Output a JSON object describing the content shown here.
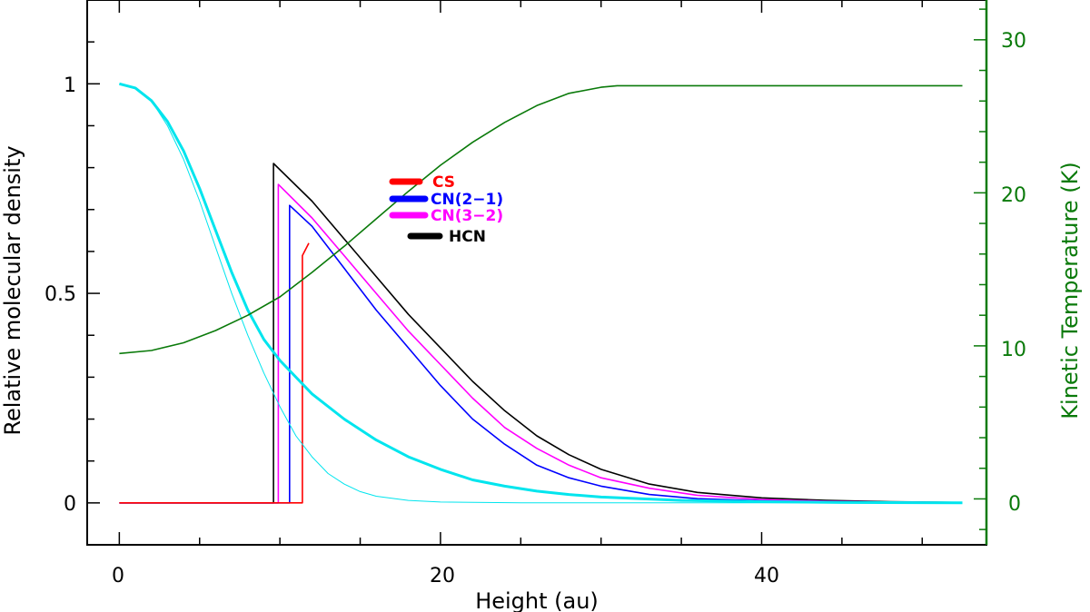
{
  "chart_data": {
    "type": "line",
    "title": "",
    "xlabel": "Height (au)",
    "ylabel": "Relative molecular density",
    "y2label": "Kinetic Temperature (K)",
    "xlim": [
      -2,
      54
    ],
    "ylim": [
      -0.1,
      1.2
    ],
    "y2lim": [
      -3,
      32.6
    ],
    "xticks": [
      0,
      20,
      40
    ],
    "xtick_labels": [
      "0",
      "20",
      "40"
    ],
    "yticks": [
      0,
      0.5,
      1
    ],
    "ytick_labels": [
      "0",
      "0.5",
      "1"
    ],
    "y2ticks": [
      0,
      10,
      20,
      30
    ],
    "y2tick_labels": [
      "0",
      "10",
      "20",
      "30"
    ],
    "grid": false,
    "legend_position": "upper-center",
    "colors": {
      "CS": "#ff0000",
      "CN(2-1)": "#0000ff",
      "CN(3-2)": "#ff00ff",
      "HCN": "#000000",
      "density": "#00e5ee",
      "temperature": "#0a7a0a"
    },
    "series": [
      {
        "name": "HCN",
        "color": "#000000",
        "axis": "left",
        "x": [
          0,
          9.6,
          9.6,
          12,
          14,
          16,
          18,
          20,
          22,
          24,
          26,
          28,
          30,
          33,
          36,
          40,
          44,
          48,
          52.5
        ],
        "y": [
          0,
          0,
          0.81,
          0.72,
          0.63,
          0.54,
          0.45,
          0.37,
          0.29,
          0.22,
          0.16,
          0.115,
          0.08,
          0.045,
          0.025,
          0.012,
          0.006,
          0.003,
          0.001
        ]
      },
      {
        "name": "CN(3-2)",
        "color": "#ff00ff",
        "axis": "left",
        "x": [
          0,
          9.9,
          9.9,
          12,
          14,
          16,
          18,
          20,
          22,
          24,
          26,
          28,
          30,
          33,
          36,
          40,
          44,
          48,
          52.5
        ],
        "y": [
          0,
          0,
          0.76,
          0.68,
          0.59,
          0.5,
          0.41,
          0.33,
          0.25,
          0.18,
          0.13,
          0.09,
          0.06,
          0.035,
          0.018,
          0.008,
          0.004,
          0.002,
          0.001
        ]
      },
      {
        "name": "CN(2-1)",
        "color": "#0000ff",
        "axis": "left",
        "x": [
          0,
          10.6,
          10.6,
          12,
          14,
          16,
          18,
          20,
          22,
          24,
          26,
          28,
          30,
          33,
          36,
          40,
          44,
          48,
          52.5
        ],
        "y": [
          0,
          0,
          0.71,
          0.66,
          0.56,
          0.46,
          0.37,
          0.28,
          0.2,
          0.14,
          0.09,
          0.06,
          0.04,
          0.02,
          0.01,
          0.005,
          0.002,
          0.001,
          0
        ]
      },
      {
        "name": "CS",
        "color": "#ff0000",
        "axis": "left",
        "x": [
          0,
          11.4,
          11.4,
          11.8
        ],
        "y": [
          0,
          0,
          0.59,
          0.62
        ]
      },
      {
        "name": "",
        "color": "#00e5ee",
        "axis": "left",
        "width": 3,
        "x": [
          0,
          1,
          2,
          3,
          4,
          5,
          6,
          7,
          8,
          9,
          10,
          11,
          12,
          14,
          16,
          18,
          20,
          22,
          24,
          26,
          28,
          30,
          35,
          40,
          45,
          52.5
        ],
        "y": [
          1,
          0.99,
          0.96,
          0.91,
          0.84,
          0.75,
          0.65,
          0.55,
          0.46,
          0.39,
          0.34,
          0.3,
          0.26,
          0.2,
          0.15,
          0.11,
          0.08,
          0.055,
          0.04,
          0.028,
          0.02,
          0.014,
          0.006,
          0.003,
          0.001,
          0
        ]
      },
      {
        "name": "",
        "color": "#00e5ee",
        "axis": "left",
        "width": 1,
        "x": [
          0,
          1,
          2,
          3,
          4,
          5,
          6,
          7,
          8,
          9,
          10,
          11,
          12,
          13,
          14,
          15,
          16,
          18,
          20,
          25,
          30,
          40,
          52.5
        ],
        "y": [
          1,
          0.99,
          0.96,
          0.9,
          0.82,
          0.72,
          0.61,
          0.5,
          0.4,
          0.31,
          0.23,
          0.16,
          0.11,
          0.07,
          0.045,
          0.027,
          0.016,
          0.006,
          0.002,
          0,
          0,
          0,
          0
        ]
      },
      {
        "name": "",
        "color": "#0a7a0a",
        "axis": "right",
        "x": [
          0,
          2,
          4,
          6,
          8,
          10,
          12,
          14,
          16,
          18,
          20,
          22,
          24,
          26,
          28,
          30,
          31,
          32,
          40,
          52.5
        ],
        "y": [
          9.5,
          9.7,
          10.2,
          11,
          12,
          13.2,
          14.8,
          16.5,
          18.3,
          20.1,
          21.8,
          23.3,
          24.6,
          25.7,
          26.5,
          26.9,
          27,
          27,
          27,
          27
        ]
      }
    ],
    "legend": [
      {
        "label": "CS",
        "color": "#ff0000"
      },
      {
        "label": "CN(2−1)",
        "color": "#0000ff"
      },
      {
        "label": "CN(3−2)",
        "color": "#ff00ff"
      },
      {
        "label": "HCN",
        "color": "#000000"
      }
    ]
  }
}
